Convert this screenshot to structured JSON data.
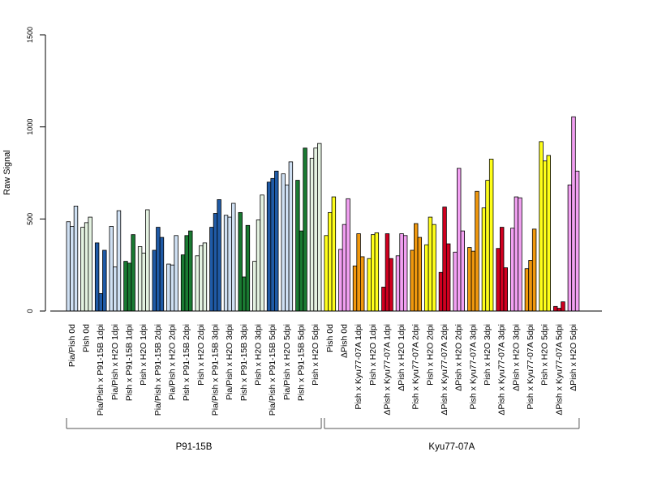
{
  "chart_data": {
    "type": "bar",
    "title": "",
    "ylabel": "Raw Signal",
    "xlabel": "",
    "ylim": [
      0,
      1500
    ],
    "yticks": [
      0,
      500,
      1000,
      1500
    ],
    "grid": false,
    "legend": "none",
    "categories": [
      "Pia/Pish 0d",
      "Pish 0d",
      "Pia/Pish x P91-15B 1dpi",
      "Pia/Pish x H2O 1dpi",
      "Pish x P91-15B 1dpi",
      "Pish x H2O 1dpi",
      "Pia/Pish x P91-15B 2dpi",
      "Pia/Pish x H2O 2dpi",
      "Pish x P91-15B 2dpi",
      "Pish x H2O 2dpi",
      "Pia/Pish x P91-15B 3dpi",
      "Pia/Pish x H2O 3dpi",
      "Pish x P91-15B 3dpi",
      "Pish x H2O 3dpi",
      "Pia/Pish x P91-15B 5dpi",
      "Pia/Pish x H2O 5dpi",
      "Pish x P91-15B 5dpi",
      "Pish x H2O 5dpi",
      "Pish 0d",
      "ΔPish 0d",
      "Pish x Kyu77-07A 1dpi",
      "Pish x H2O 1dpi",
      "ΔPish x Kyu77-07A 1dpi",
      "ΔPish x H2O 1dpi",
      "Pish x Kyu77-07A 2dpi",
      "Pish x H2O 2dpi",
      "ΔPish x Kyu77-07A 2dpi",
      "ΔPish x H2O 2dpi",
      "Pish x Kyu77-07A 3dpi",
      "Pish x H2O 3dpi",
      "ΔPish x Kyu77-07A 3dpi",
      "ΔPish x H2O 3dpi",
      "Pish x Kyu77-07A 5dpi",
      "Pish x H2O 5dpi",
      "ΔPish x Kyu77-07A 5dpi",
      "ΔPish x H2O 5dpi"
    ],
    "colors": [
      "#cfe0f3",
      "#e4f2e1",
      "#1f5aa6",
      "#cfe0f3",
      "#1a7a32",
      "#e4f2e1",
      "#1f5aa6",
      "#cfe0f3",
      "#1a7a32",
      "#e4f2e1",
      "#1f5aa6",
      "#cfe0f3",
      "#1a7a32",
      "#e4f2e1",
      "#1f5aa6",
      "#cfe0f3",
      "#1a7a32",
      "#e4f2e1",
      "#ffff1a",
      "#f2a0f2",
      "#f0980e",
      "#ffff1a",
      "#d00020",
      "#f2a0f2",
      "#f0980e",
      "#ffff1a",
      "#d00020",
      "#f2a0f2",
      "#f0980e",
      "#ffff1a",
      "#d00020",
      "#f2a0f2",
      "#f0980e",
      "#ffff1a",
      "#d00020",
      "#f2a0f2"
    ],
    "values": [
      [
        485,
        460,
        570
      ],
      [
        455,
        480,
        510
      ],
      [
        370,
        95,
        330
      ],
      [
        460,
        240,
        545
      ],
      [
        270,
        260,
        415
      ],
      [
        350,
        315,
        550
      ],
      [
        330,
        455,
        400
      ],
      [
        255,
        250,
        410
      ],
      [
        305,
        410,
        435
      ],
      [
        300,
        355,
        370
      ],
      [
        455,
        530,
        605
      ],
      [
        520,
        510,
        585
      ],
      [
        535,
        185,
        465
      ],
      [
        270,
        495,
        630
      ],
      [
        700,
        720,
        760
      ],
      [
        745,
        685,
        810
      ],
      [
        710,
        435,
        885
      ],
      [
        830,
        885,
        910
      ],
      [
        410,
        535,
        620
      ],
      [
        335,
        470,
        610
      ],
      [
        245,
        420,
        295
      ],
      [
        285,
        415,
        425
      ],
      [
        130,
        420,
        285
      ],
      [
        300,
        420,
        410
      ],
      [
        330,
        475,
        400
      ],
      [
        360,
        510,
        470
      ],
      [
        210,
        565,
        365
      ],
      [
        320,
        775,
        435
      ],
      [
        345,
        325,
        650
      ],
      [
        560,
        710,
        825
      ],
      [
        340,
        455,
        235
      ],
      [
        450,
        620,
        615
      ],
      [
        230,
        275,
        445
      ],
      [
        920,
        815,
        845
      ],
      [
        25,
        15,
        50
      ],
      [
        685,
        1055,
        760
      ]
    ],
    "groups": [
      {
        "label": "P91-15B",
        "from": 0,
        "to": 17
      },
      {
        "label": "Kyu77-07A",
        "from": 18,
        "to": 35
      }
    ]
  }
}
